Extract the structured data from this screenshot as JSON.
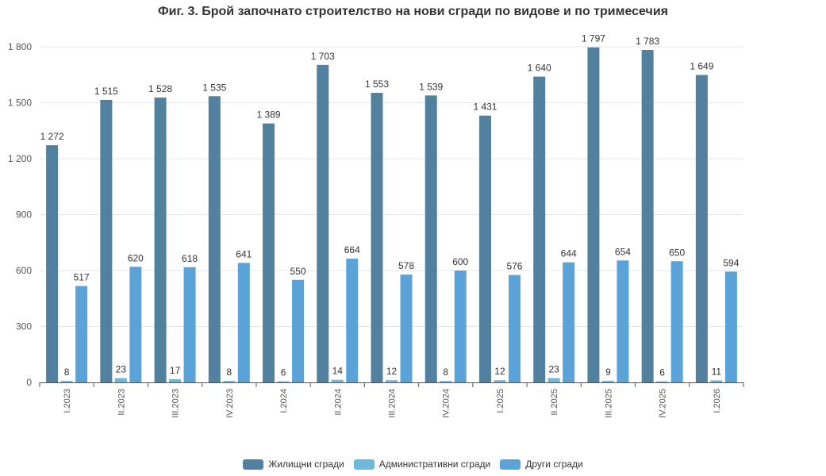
{
  "chart_data": {
    "type": "bar",
    "title": "Фиг. 3. Брой започнато строителство на нови сгради по видове и по тримесечия",
    "xlabel": "",
    "ylabel": "",
    "ylim": [
      0,
      1800
    ],
    "yticks": [
      "0",
      "300",
      "600",
      "900",
      "1 200",
      "1 500",
      "1 800"
    ],
    "grid": true,
    "legend_position": "bottom",
    "categories": [
      "I.2023",
      "II.2023",
      "III.2023",
      "IV.2023",
      "I.2024",
      "II.2024",
      "III.2024",
      "IV.2024",
      "I.2025",
      "II.2025",
      "III.2025",
      "IV.2025",
      "I.2026"
    ],
    "series": [
      {
        "name": "Жилищни сгради",
        "color": "#52809f",
        "values": [
          1272,
          1515,
          1528,
          1535,
          1389,
          1703,
          1553,
          1539,
          1431,
          1640,
          1797,
          1783,
          1649
        ],
        "labels": [
          "1 272",
          "1 515",
          "1 528",
          "1 535",
          "1 389",
          "1 703",
          "1 553",
          "1 539",
          "1 431",
          "1 640",
          "1 797",
          "1 783",
          "1 649"
        ]
      },
      {
        "name": "Административни сгради",
        "color": "#6db8dd",
        "values": [
          8,
          23,
          17,
          8,
          6,
          14,
          12,
          8,
          12,
          23,
          9,
          6,
          11
        ],
        "labels": [
          "8",
          "23",
          "17",
          "8",
          "6",
          "14",
          "12",
          "8",
          "12",
          "23",
          "9",
          "6",
          "11"
        ]
      },
      {
        "name": "Други сгради",
        "color": "#5aa3d8",
        "values": [
          517,
          620,
          618,
          641,
          550,
          664,
          578,
          600,
          576,
          644,
          654,
          650,
          594
        ],
        "labels": [
          "517",
          "620",
          "618",
          "641",
          "550",
          "664",
          "578",
          "600",
          "576",
          "644",
          "654",
          "650",
          "594"
        ]
      }
    ]
  }
}
